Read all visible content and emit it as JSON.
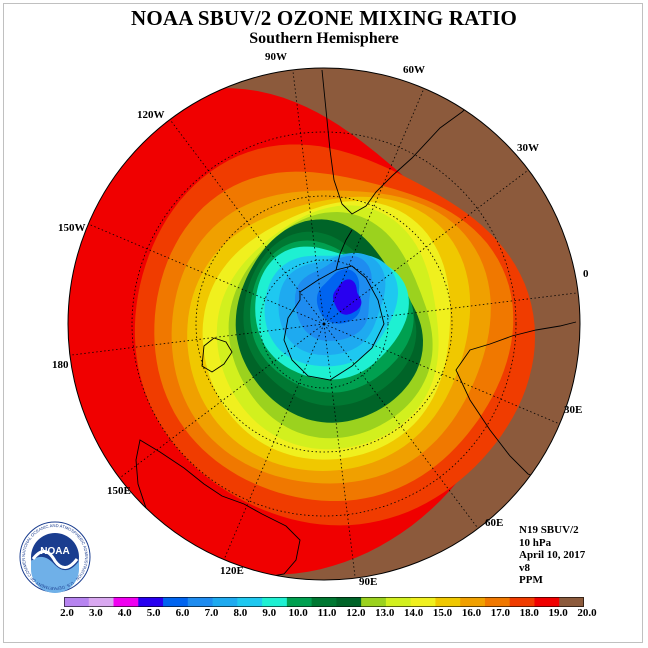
{
  "title": "NOAA SBUV/2 OZONE MIXING RATIO",
  "subtitle": "Southern Hemisphere",
  "longitude_labels": [
    "90W",
    "60W",
    "30W",
    "0",
    "30E",
    "60E",
    "90E",
    "120E",
    "150E",
    "180",
    "150W",
    "120W"
  ],
  "info": {
    "satellite": "N19 SBUV/2",
    "level": "10 hPa",
    "date": "April 10, 2017",
    "version": "v8",
    "units": "PPM"
  },
  "logo": {
    "text": "NOAA",
    "ring_text": "NATIONAL OCEANIC AND ATMOSPHERIC ADMINISTRATION · U.S. DEPARTMENT OF COMMERCE"
  },
  "colorbar": {
    "ticks": [
      "2.0",
      "3.0",
      "4.0",
      "5.0",
      "6.0",
      "7.0",
      "8.0",
      "9.0",
      "10.0",
      "11.0",
      "12.0",
      "13.0",
      "14.0",
      "15.0",
      "16.0",
      "17.0",
      "18.0",
      "19.0",
      "20.0"
    ],
    "colors": [
      "#b784f0",
      "#d9a8f0",
      "#f000f0",
      "#2800f0",
      "#0064f0",
      "#1e8cf0",
      "#1eaaf0",
      "#1ec8f0",
      "#1ef0d2",
      "#00a050",
      "#007832",
      "#006428",
      "#9bd21e",
      "#d2f01e",
      "#f0f01e",
      "#f0c800",
      "#f0a000",
      "#f07800",
      "#f03c00",
      "#f00000",
      "#8c5a3c"
    ]
  },
  "field_colors": {
    "brown": "#8c5a3c",
    "red": "#f00000",
    "red_orange": "#f03c00",
    "orange": "#f07800",
    "orange2": "#f0a000",
    "gold": "#f0c800",
    "yellow": "#f0f01e",
    "yellow_green": "#d2f01e",
    "light_green": "#9bd21e",
    "dark_green": "#006428",
    "green": "#007832",
    "green2": "#00a050",
    "cyan": "#1ef0d2",
    "sky": "#1ec8f0",
    "light_blue": "#1eaaf0",
    "blue": "#1e8cf0",
    "blue2": "#0064f0",
    "deep_blue": "#2800f0"
  }
}
